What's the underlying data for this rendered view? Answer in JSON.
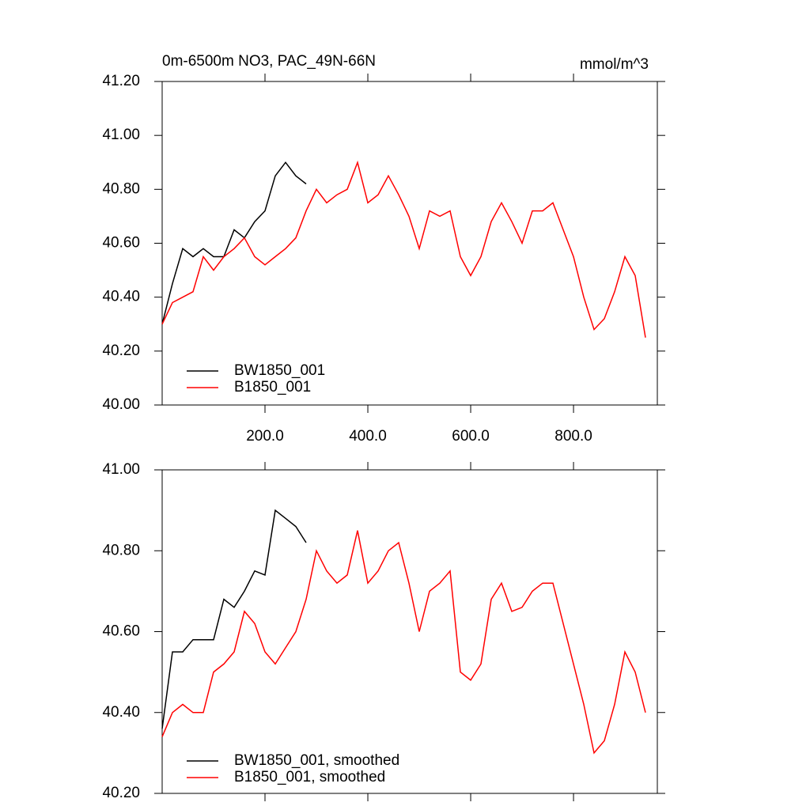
{
  "chart_data": [
    {
      "type": "line",
      "title": "0m-6500m NO3, PAC_49N-66N",
      "units": "mmol/m^3",
      "x": [
        0,
        20,
        40,
        60,
        80,
        100,
        120,
        140,
        160,
        180,
        200,
        220,
        240,
        260,
        280,
        300,
        320,
        340,
        360,
        380,
        400,
        420,
        440,
        460,
        480,
        500,
        520,
        540,
        560,
        580,
        600,
        620,
        640,
        660,
        680,
        700,
        720,
        740,
        760,
        780,
        800,
        820,
        840,
        860,
        880,
        900,
        920,
        940
      ],
      "series": [
        {
          "name": "BW1850_001",
          "color": "#000000",
          "values": [
            40.3,
            40.45,
            40.58,
            40.55,
            40.58,
            40.55,
            40.55,
            40.65,
            40.62,
            40.68,
            40.72,
            40.85,
            40.9,
            40.85,
            40.82,
            null,
            null,
            null,
            null,
            null,
            null,
            null,
            null,
            null,
            null,
            null,
            null,
            null,
            null,
            null,
            null,
            null,
            null,
            null,
            null,
            null,
            null,
            null,
            null,
            null,
            null,
            null,
            null,
            null,
            null,
            null,
            null,
            null
          ]
        },
        {
          "name": "B1850_001",
          "color": "#ff0000",
          "values": [
            40.3,
            40.38,
            40.4,
            40.42,
            40.55,
            40.5,
            40.55,
            40.58,
            40.62,
            40.55,
            40.52,
            40.55,
            40.58,
            40.62,
            40.72,
            40.8,
            40.75,
            40.78,
            40.8,
            40.9,
            40.75,
            40.78,
            40.85,
            40.78,
            40.7,
            40.58,
            40.72,
            40.7,
            40.72,
            40.55,
            40.48,
            40.55,
            40.68,
            40.75,
            40.68,
            40.6,
            40.72,
            40.72,
            40.75,
            40.65,
            40.55,
            40.4,
            40.28,
            40.32,
            40.42,
            40.55,
            40.48,
            40.25
          ]
        }
      ],
      "xlim": [
        0,
        963
      ],
      "xticks": [
        {
          "value": 200,
          "label": "200.0"
        },
        {
          "value": 400,
          "label": "400.0"
        },
        {
          "value": 600,
          "label": "600.0"
        },
        {
          "value": 800,
          "label": "800.0"
        }
      ],
      "ylim": [
        40.0,
        41.2
      ],
      "yticks": [
        {
          "value": 40.0,
          "label": "40.00"
        },
        {
          "value": 40.2,
          "label": "40.20"
        },
        {
          "value": 40.4,
          "label": "40.40"
        },
        {
          "value": 40.6,
          "label": "40.60"
        },
        {
          "value": 40.8,
          "label": "40.80"
        },
        {
          "value": 41.0,
          "label": "41.00"
        },
        {
          "value": 41.2,
          "label": "41.20"
        }
      ],
      "legend": "lower left"
    },
    {
      "type": "line",
      "x": [
        0,
        20,
        40,
        60,
        80,
        100,
        120,
        140,
        160,
        180,
        200,
        220,
        240,
        260,
        280,
        300,
        320,
        340,
        360,
        380,
        400,
        420,
        440,
        460,
        480,
        500,
        520,
        540,
        560,
        580,
        600,
        620,
        640,
        660,
        680,
        700,
        720,
        740,
        760,
        780,
        800,
        820,
        840,
        860,
        880,
        900,
        920,
        940
      ],
      "series": [
        {
          "name": "BW1850_001, smoothed",
          "color": "#000000",
          "values": [
            40.36,
            40.55,
            40.55,
            40.58,
            40.58,
            40.58,
            40.68,
            40.66,
            40.7,
            40.75,
            40.74,
            40.9,
            40.88,
            40.86,
            40.82,
            null,
            null,
            null,
            null,
            null,
            null,
            null,
            null,
            null,
            null,
            null,
            null,
            null,
            null,
            null,
            null,
            null,
            null,
            null,
            null,
            null,
            null,
            null,
            null,
            null,
            null,
            null,
            null,
            null,
            null,
            null,
            null,
            null
          ]
        },
        {
          "name": "B1850_001, smoothed",
          "color": "#ff0000",
          "values": [
            40.34,
            40.4,
            40.42,
            40.4,
            40.4,
            40.5,
            40.52,
            40.55,
            40.65,
            40.62,
            40.55,
            40.52,
            40.56,
            40.6,
            40.68,
            40.8,
            40.75,
            40.72,
            40.74,
            40.85,
            40.72,
            40.75,
            40.8,
            40.82,
            40.72,
            40.6,
            40.7,
            40.72,
            40.75,
            40.5,
            40.48,
            40.52,
            40.68,
            40.72,
            40.65,
            40.66,
            40.7,
            40.72,
            40.72,
            40.62,
            40.52,
            40.42,
            40.3,
            40.33,
            40.42,
            40.55,
            40.5,
            40.4
          ]
        }
      ],
      "xlim": [
        0,
        963
      ],
      "xticks": [
        200,
        400,
        600,
        800
      ],
      "xtick_labels_shown": false,
      "ylim": [
        40.2,
        41.0
      ],
      "yticks": [
        {
          "value": 40.2,
          "label": "40.20"
        },
        {
          "value": 40.4,
          "label": "40.40"
        },
        {
          "value": 40.6,
          "label": "40.60"
        },
        {
          "value": 40.8,
          "label": "40.80"
        },
        {
          "value": 41.0,
          "label": "41.00"
        }
      ],
      "legend": "lower left"
    }
  ]
}
